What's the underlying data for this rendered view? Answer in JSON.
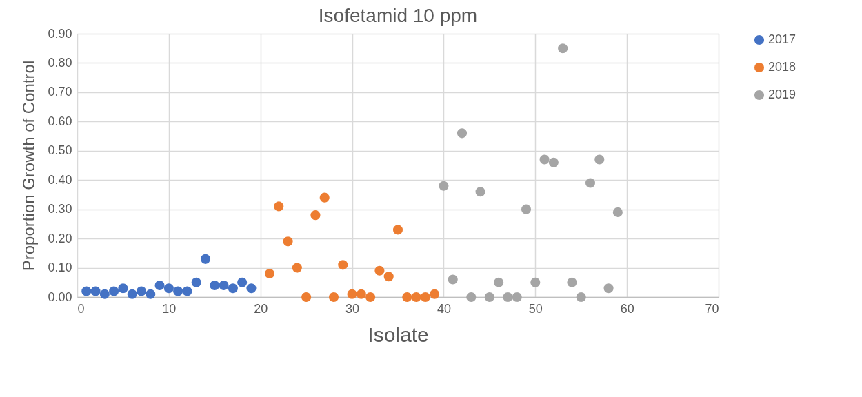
{
  "chart_data": {
    "type": "scatter",
    "title": "Isofetamid 10 ppm",
    "xlabel": "Isolate",
    "ylabel": "Proportion Growth of Control",
    "xlim": [
      0,
      70
    ],
    "xticks": [
      0,
      10,
      20,
      30,
      40,
      50,
      60,
      70
    ],
    "ylim": [
      0,
      0.9
    ],
    "yticks": [
      {
        "value": 0,
        "label": "0.00"
      },
      {
        "value": 0.1,
        "label": "0.10"
      },
      {
        "value": 0.2,
        "label": "0.20"
      },
      {
        "value": 0.3,
        "label": "0.30"
      },
      {
        "value": 0.4,
        "label": "0.40"
      },
      {
        "value": 0.5,
        "label": "0.50"
      },
      {
        "value": 0.6,
        "label": "0.60"
      },
      {
        "value": 0.7,
        "label": "0.70"
      },
      {
        "value": 0.8,
        "label": "0.80"
      },
      {
        "value": 0.9,
        "label": "0.90"
      }
    ],
    "grid": true,
    "legend": "right",
    "marker": "circle",
    "series": [
      {
        "name": "2017",
        "color": "#4472c4",
        "x": [
          1,
          2,
          3,
          4,
          5,
          6,
          7,
          8,
          9,
          10,
          11,
          12,
          13,
          14,
          15,
          16,
          17,
          18,
          19
        ],
        "values": [
          0.02,
          0.02,
          0.01,
          0.02,
          0.03,
          0.01,
          0.02,
          0.01,
          0.04,
          0.03,
          0.02,
          0.02,
          0.05,
          0.13,
          0.04,
          0.04,
          0.03,
          0.05,
          0.03
        ]
      },
      {
        "name": "2018",
        "color": "#ed7d31",
        "x": [
          21,
          22,
          23,
          24,
          25,
          26,
          27,
          28,
          29,
          30,
          31,
          32,
          33,
          34,
          35,
          36,
          37,
          38,
          39
        ],
        "values": [
          0.08,
          0.31,
          0.19,
          0.1,
          0,
          0.28,
          0.34,
          0,
          0.11,
          0.01,
          0.01,
          0,
          0.09,
          0.07,
          0.23,
          0,
          0,
          0,
          0.01
        ]
      },
      {
        "name": "2019",
        "color": "#a5a5a5",
        "x": [
          40,
          41,
          42,
          43,
          44,
          45,
          46,
          47,
          48,
          49,
          50,
          51,
          52,
          53,
          54,
          55,
          56,
          57,
          58,
          59
        ],
        "values": [
          0.38,
          0.06,
          0.56,
          0,
          0.36,
          0,
          0.05,
          0,
          0,
          0.3,
          0.05,
          0.47,
          0.46,
          0.85,
          0.05,
          0,
          0.39,
          0.47,
          0.03,
          0.29
        ]
      }
    ]
  }
}
